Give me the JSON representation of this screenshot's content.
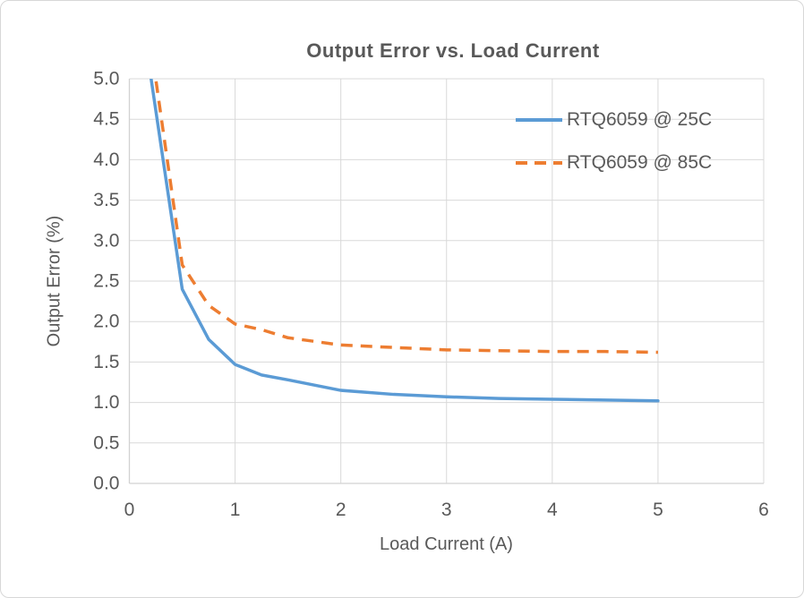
{
  "chart_data": {
    "type": "line",
    "title": "Output Error vs. Load Current",
    "xlabel": "Load Current (A)",
    "ylabel": "Output Error (%)",
    "xlim": [
      0,
      6
    ],
    "ylim": [
      0,
      5
    ],
    "x_ticks": [
      0,
      1,
      2,
      3,
      4,
      5,
      6
    ],
    "x_tick_labels": [
      "0",
      "1",
      "2",
      "3",
      "4",
      "5",
      "6"
    ],
    "y_ticks": [
      0,
      0.5,
      1,
      1.5,
      2,
      2.5,
      3,
      3.5,
      4,
      4.5,
      5
    ],
    "y_tick_labels": [
      "0.0",
      "0.5",
      "1.0",
      "1.5",
      "2.0",
      "2.5",
      "3.0",
      "3.5",
      "4.0",
      "4.5",
      "5.0"
    ],
    "grid": true,
    "legend_position": "top-right-inside",
    "colors": {
      "series_25c": "#5B9BD5",
      "series_85c": "#ED7D31",
      "text": "#595959",
      "grid": "#D9D9D9",
      "axis": "#D2D2D2",
      "background": "#FFFFFF"
    },
    "series": [
      {
        "name": "RTQ6059 @ 25C",
        "color": "#5B9BD5",
        "style": "solid",
        "x": [
          0.2,
          0.5,
          0.75,
          1.0,
          1.25,
          1.5,
          2.0,
          2.5,
          3.0,
          3.5,
          4.0,
          4.5,
          5.0
        ],
        "y": [
          5.05,
          2.4,
          1.78,
          1.47,
          1.34,
          1.28,
          1.15,
          1.1,
          1.07,
          1.05,
          1.04,
          1.03,
          1.02
        ]
      },
      {
        "name": "RTQ6059 @ 85C",
        "color": "#ED7D31",
        "style": "dashed",
        "x": [
          0.2,
          0.5,
          0.75,
          1.0,
          1.25,
          1.5,
          2.0,
          2.5,
          3.0,
          3.5,
          4.0,
          4.5,
          5.0
        ],
        "y": [
          5.45,
          2.7,
          2.2,
          1.97,
          1.9,
          1.8,
          1.71,
          1.68,
          1.65,
          1.64,
          1.63,
          1.63,
          1.62
        ]
      }
    ]
  }
}
